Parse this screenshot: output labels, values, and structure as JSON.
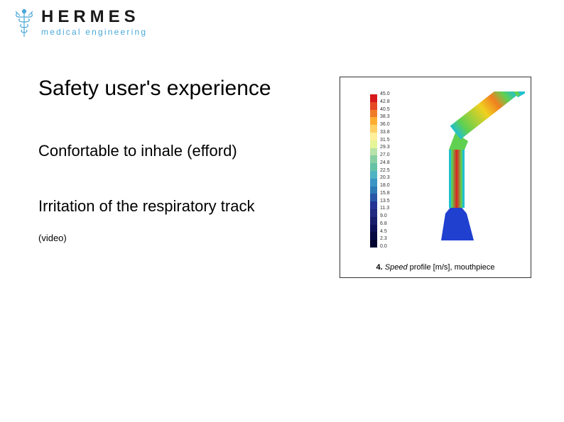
{
  "logo": {
    "main": "HERMES",
    "sub": "medical engineering",
    "icon_color": "#4aa8d8"
  },
  "heading": "Safety user's experience",
  "line2": "Confortable to inhale (efford)",
  "line3": "Irritation of the respiratory track",
  "video_note": "(video)",
  "figure": {
    "caption_num": "4.",
    "caption_italic": "Speed",
    "caption_rest": " profile [m/s], mouthpiece",
    "colorbar": {
      "colors": [
        "#d7191c",
        "#e54a22",
        "#f07c2a",
        "#fdae32",
        "#fed166",
        "#fff099",
        "#e6f598",
        "#b7e2a8",
        "#88cfa4",
        "#66c2a5",
        "#4eb3c2",
        "#3a95c4",
        "#2c7bb6",
        "#2857a7",
        "#253494",
        "#1f2a80",
        "#171c6b",
        "#0e1057",
        "#060843",
        "#020230"
      ],
      "labels": [
        "45.0",
        "42.8",
        "40.5",
        "38.3",
        "36.0",
        "33.8",
        "31.5",
        "29.3",
        "27.0",
        "24.8",
        "22.5",
        "20.3",
        "18.0",
        "15.8",
        "13.5",
        "11.3",
        "9.0",
        "6.8",
        "4.5",
        "2.3",
        "0.0"
      ]
    },
    "cfd": {
      "body_blue": "#2040d0",
      "edge_cyan": "#20c0d0",
      "mid_green": "#60d050",
      "hot_yellow": "#f0d020",
      "hot_orange": "#f08020",
      "hot_red": "#e02020"
    }
  }
}
